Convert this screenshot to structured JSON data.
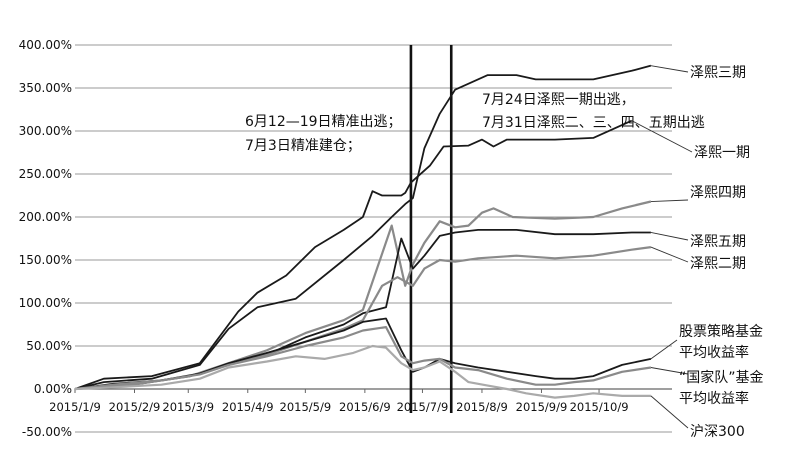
{
  "chart_data": {
    "type": "line",
    "title": "",
    "xlabel": "",
    "ylabel": "",
    "ylim": [
      -50,
      400
    ],
    "ytick_labels": [
      "-50.00%",
      "0.00%",
      "50.00%",
      "100.00%",
      "150.00%",
      "200.00%",
      "250.00%",
      "300.00%",
      "350.00%",
      "400.00%"
    ],
    "x_tick_labels": [
      "2015/1/9",
      "2015/2/9",
      "2015/3/9",
      "2015/4/9",
      "2015/5/9",
      "2015/6/9",
      "2015/7/9",
      "2015/8/9",
      "2015/9/9",
      "2015/10/9"
    ],
    "x_ticks_days": [
      0,
      31,
      59,
      90,
      120,
      151,
      181,
      212,
      243,
      273
    ],
    "xlim_days": [
      0,
      311
    ],
    "grid": "horizontal",
    "markers": [
      {
        "date": "2015/7/3",
        "day": 175
      },
      {
        "date": "2015/7/24",
        "day": 196
      }
    ],
    "annotations": [
      {
        "lines": [
          "6月12—19日精准出逃；",
          "7月3日精准建仓；"
        ]
      },
      {
        "lines": [
          "7月24日泽熙一期出逃，",
          "7月31日泽熙二、三、四、五期出逃"
        ]
      }
    ],
    "series": [
      {
        "name": "泽熙三期",
        "color": "#1a1a1a",
        "points": [
          [
            0,
            0
          ],
          [
            15,
            8
          ],
          [
            40,
            12
          ],
          [
            65,
            28
          ],
          [
            80,
            70
          ],
          [
            95,
            95
          ],
          [
            115,
            105
          ],
          [
            140,
            150
          ],
          [
            155,
            178
          ],
          [
            165,
            200
          ],
          [
            172,
            215
          ],
          [
            176,
            222
          ],
          [
            182,
            280
          ],
          [
            190,
            320
          ],
          [
            198,
            348
          ],
          [
            205,
            355
          ],
          [
            215,
            365
          ],
          [
            230,
            365
          ],
          [
            240,
            360
          ],
          [
            270,
            360
          ],
          [
            290,
            370
          ],
          [
            300,
            376
          ]
        ]
      },
      {
        "name": "泽熙一期",
        "color": "#1a1a1a",
        "points": [
          [
            0,
            0
          ],
          [
            15,
            12
          ],
          [
            40,
            15
          ],
          [
            65,
            30
          ],
          [
            85,
            90
          ],
          [
            95,
            112
          ],
          [
            110,
            132
          ],
          [
            125,
            165
          ],
          [
            140,
            185
          ],
          [
            150,
            200
          ],
          [
            155,
            230
          ],
          [
            160,
            225
          ],
          [
            170,
            225
          ],
          [
            172,
            228
          ],
          [
            175,
            240
          ],
          [
            185,
            260
          ],
          [
            192,
            282
          ],
          [
            205,
            283
          ],
          [
            212,
            290
          ],
          [
            218,
            282
          ],
          [
            225,
            290
          ],
          [
            250,
            290
          ],
          [
            270,
            292
          ],
          [
            290,
            312
          ]
        ]
      },
      {
        "name": "泽熙四期",
        "color": "#8a8a8a",
        "points": [
          [
            0,
            0
          ],
          [
            30,
            5
          ],
          [
            60,
            15
          ],
          [
            80,
            30
          ],
          [
            100,
            45
          ],
          [
            120,
            65
          ],
          [
            140,
            80
          ],
          [
            150,
            92
          ],
          [
            165,
            190
          ],
          [
            172,
            120
          ],
          [
            176,
            145
          ],
          [
            182,
            170
          ],
          [
            190,
            195
          ],
          [
            198,
            188
          ],
          [
            205,
            190
          ],
          [
            212,
            205
          ],
          [
            218,
            210
          ],
          [
            228,
            200
          ],
          [
            250,
            198
          ],
          [
            270,
            200
          ],
          [
            285,
            210
          ],
          [
            300,
            218
          ]
        ]
      },
      {
        "name": "泽熙五期",
        "color": "#1a1a1a",
        "points": [
          [
            0,
            0
          ],
          [
            30,
            5
          ],
          [
            60,
            15
          ],
          [
            80,
            28
          ],
          [
            100,
            40
          ],
          [
            120,
            60
          ],
          [
            140,
            75
          ],
          [
            150,
            88
          ],
          [
            162,
            95
          ],
          [
            170,
            175
          ],
          [
            176,
            140
          ],
          [
            182,
            155
          ],
          [
            190,
            178
          ],
          [
            198,
            182
          ],
          [
            210,
            185
          ],
          [
            230,
            185
          ],
          [
            250,
            180
          ],
          [
            270,
            180
          ],
          [
            290,
            182
          ],
          [
            300,
            182
          ]
        ]
      },
      {
        "name": "泽熙二期",
        "color": "#8a8a8a",
        "points": [
          [
            0,
            0
          ],
          [
            30,
            5
          ],
          [
            60,
            15
          ],
          [
            80,
            28
          ],
          [
            100,
            40
          ],
          [
            120,
            55
          ],
          [
            140,
            70
          ],
          [
            150,
            80
          ],
          [
            160,
            120
          ],
          [
            168,
            130
          ],
          [
            176,
            120
          ],
          [
            182,
            140
          ],
          [
            190,
            150
          ],
          [
            198,
            148
          ],
          [
            210,
            152
          ],
          [
            230,
            155
          ],
          [
            250,
            152
          ],
          [
            270,
            155
          ],
          [
            290,
            162
          ],
          [
            300,
            165
          ]
        ]
      },
      {
        "name": "股票策略基金平均收益率",
        "color": "#1a1a1a",
        "points": [
          [
            0,
            0
          ],
          [
            20,
            6
          ],
          [
            45,
            10
          ],
          [
            65,
            18
          ],
          [
            80,
            30
          ],
          [
            100,
            42
          ],
          [
            120,
            55
          ],
          [
            140,
            68
          ],
          [
            150,
            78
          ],
          [
            162,
            82
          ],
          [
            170,
            45
          ],
          [
            176,
            20
          ],
          [
            182,
            25
          ],
          [
            190,
            35
          ],
          [
            198,
            30
          ],
          [
            210,
            25
          ],
          [
            225,
            20
          ],
          [
            240,
            15
          ],
          [
            250,
            12
          ],
          [
            260,
            12
          ],
          [
            270,
            15
          ],
          [
            285,
            28
          ],
          [
            300,
            35
          ]
        ]
      },
      {
        "name": "“国家队”基金平均收益率",
        "color": "#8a8a8a",
        "points": [
          [
            0,
            0
          ],
          [
            20,
            5
          ],
          [
            45,
            10
          ],
          [
            65,
            17
          ],
          [
            80,
            28
          ],
          [
            100,
            38
          ],
          [
            120,
            50
          ],
          [
            140,
            60
          ],
          [
            150,
            68
          ],
          [
            162,
            72
          ],
          [
            170,
            38
          ],
          [
            176,
            30
          ],
          [
            182,
            33
          ],
          [
            190,
            35
          ],
          [
            198,
            25
          ],
          [
            210,
            22
          ],
          [
            225,
            12
          ],
          [
            240,
            5
          ],
          [
            250,
            5
          ],
          [
            260,
            8
          ],
          [
            270,
            10
          ],
          [
            285,
            20
          ],
          [
            300,
            25
          ]
        ]
      },
      {
        "name": "沪深300",
        "color": "#aaaaaa",
        "points": [
          [
            0,
            0
          ],
          [
            20,
            2
          ],
          [
            45,
            5
          ],
          [
            65,
            12
          ],
          [
            80,
            25
          ],
          [
            100,
            32
          ],
          [
            115,
            38
          ],
          [
            130,
            35
          ],
          [
            145,
            42
          ],
          [
            155,
            50
          ],
          [
            162,
            48
          ],
          [
            170,
            30
          ],
          [
            176,
            22
          ],
          [
            182,
            25
          ],
          [
            190,
            32
          ],
          [
            198,
            20
          ],
          [
            205,
            8
          ],
          [
            215,
            4
          ],
          [
            225,
            0
          ],
          [
            235,
            -5
          ],
          [
            250,
            -10
          ],
          [
            260,
            -8
          ],
          [
            270,
            -5
          ],
          [
            285,
            -8
          ],
          [
            300,
            -8
          ]
        ]
      }
    ]
  }
}
